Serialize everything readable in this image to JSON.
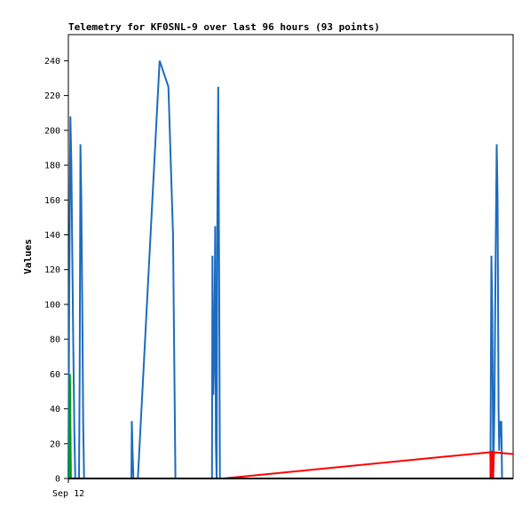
{
  "chart_data": {
    "type": "line",
    "title": "Telemetry for KF0SNL-9 over last 96 hours (93 points)",
    "ylabel": "Values",
    "xlabel": "",
    "x_tick_labels": [
      "Sep 12"
    ],
    "x_range_hours": [
      0,
      96
    ],
    "ylim": [
      0,
      255
    ],
    "y_ticks": [
      0,
      20,
      40,
      60,
      80,
      100,
      120,
      140,
      160,
      180,
      200,
      220,
      240
    ],
    "grid": false,
    "legend": "none",
    "series": [
      {
        "color": "#1c6bbf",
        "points": [
          [
            0.0,
            0
          ],
          [
            0.2,
            105
          ],
          [
            0.45,
            208
          ],
          [
            0.65,
            180
          ],
          [
            0.85,
            130
          ],
          [
            1.05,
            78
          ],
          [
            1.3,
            26
          ],
          [
            1.5,
            0
          ],
          [
            2.3,
            0
          ],
          [
            2.45,
            65
          ],
          [
            2.6,
            192
          ],
          [
            2.8,
            160
          ],
          [
            3.0,
            97
          ],
          [
            3.2,
            32
          ],
          [
            3.4,
            0
          ],
          [
            13.6,
            0
          ],
          [
            13.7,
            33
          ],
          [
            13.85,
            16
          ],
          [
            14.05,
            0
          ],
          [
            15.0,
            0
          ],
          [
            19.7,
            240
          ],
          [
            21.6,
            225
          ],
          [
            22.6,
            140
          ],
          [
            23.1,
            0
          ],
          [
            31.0,
            0
          ],
          [
            31.1,
            128
          ],
          [
            31.3,
            48
          ],
          [
            31.5,
            72
          ],
          [
            31.7,
            145
          ],
          [
            31.85,
            20
          ],
          [
            32.0,
            0
          ],
          [
            32.15,
            145
          ],
          [
            32.35,
            225
          ],
          [
            32.55,
            112
          ],
          [
            32.7,
            0
          ],
          [
            91.1,
            0
          ],
          [
            91.3,
            128
          ],
          [
            91.5,
            96
          ],
          [
            91.7,
            0
          ],
          [
            91.95,
            40
          ],
          [
            92.2,
            122
          ],
          [
            92.45,
            192
          ],
          [
            92.65,
            160
          ],
          [
            92.85,
            40
          ],
          [
            93.0,
            16
          ],
          [
            93.15,
            33
          ],
          [
            93.3,
            24
          ],
          [
            93.45,
            33
          ],
          [
            93.6,
            0
          ],
          [
            93.85,
            0
          ]
        ]
      },
      {
        "color": "#ff0000",
        "points": [
          [
            0.0,
            0
          ],
          [
            33.5,
            0
          ],
          [
            90.7,
            15
          ],
          [
            91.05,
            15
          ],
          [
            91.25,
            0
          ],
          [
            91.45,
            16
          ],
          [
            91.65,
            0
          ],
          [
            91.85,
            14
          ],
          [
            92.1,
            15
          ],
          [
            96.0,
            14
          ]
        ]
      },
      {
        "color": "#00a000",
        "points": [
          [
            0.0,
            0
          ],
          [
            0.25,
            0
          ],
          [
            0.35,
            60
          ],
          [
            0.55,
            0
          ],
          [
            0.75,
            0
          ],
          [
            31.5,
            0
          ],
          [
            91.2,
            0
          ],
          [
            91.9,
            0
          ],
          [
            96.0,
            0
          ]
        ]
      },
      {
        "color": "#000000",
        "points": [
          [
            0.0,
            0
          ],
          [
            96.0,
            0
          ]
        ]
      }
    ]
  }
}
